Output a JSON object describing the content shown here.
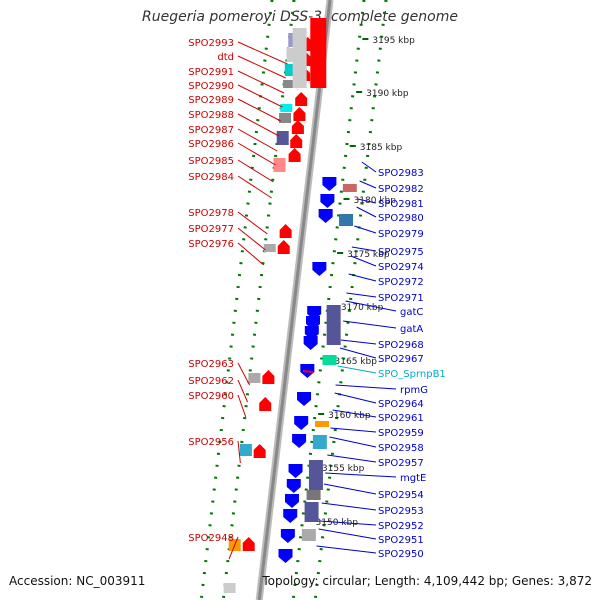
{
  "title": "Ruegeria pomeroyi DSS-3, complete genome",
  "footer": {
    "accession": "Accession: NC_003911",
    "topology": "Topology: circular; Length: 4,109,442 bp; Genes: 3,872"
  },
  "colors": {
    "forward": "#ff0000",
    "reverse": "#0000ff",
    "label_forward": "#cc0000",
    "label_reverse": "#0000cc",
    "label_rna": "#00aacc",
    "ticks": "#007700",
    "backbone": "#888888"
  },
  "scale_ticks": [
    "3195 kbp",
    "3190 kbp",
    "3185 kbp",
    "3180 kbp",
    "3175 kbp",
    "3170 kbp",
    "3165 kbp",
    "3160 kbp",
    "3155 kbp",
    "3150 kbp"
  ],
  "left_labels": [
    "SPO2993",
    "dtd",
    "SPO2991",
    "SPO2990",
    "SPO2989",
    "SPO2988",
    "SPO2987",
    "SPO2986",
    "SPO2985",
    "SPO2984",
    "SPO2978",
    "SPO2977",
    "SPO2976",
    "SPO2963",
    "SPO2962",
    "SPO2960",
    "SPO2956",
    "SPO2948"
  ],
  "right_labels": [
    "SPO2983",
    "SPO2982",
    "SPO2981",
    "SPO2980",
    "SPO2979",
    "SPO2975",
    "SPO2974",
    "SPO2972",
    "SPO2971",
    "gatC",
    "gatA",
    "SPO2968",
    "SPO2967",
    "SPO_SprnpB1",
    "rpmG",
    "SPO2964",
    "SPO2961",
    "SPO2959",
    "SPO2958",
    "SPO2957",
    "mgtE",
    "SPO2954",
    "SPO2953",
    "SPO2952",
    "SPO2951",
    "SPO2950"
  ],
  "rna_label": "SPO_SprnpB1"
}
